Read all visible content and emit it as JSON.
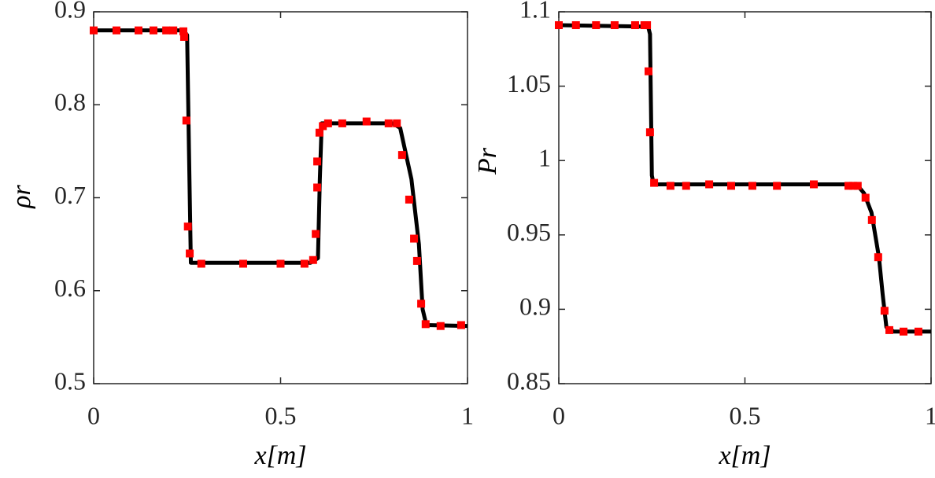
{
  "chart_data": [
    {
      "type": "line",
      "xlabel": "x[m]",
      "ylabel": "ρr",
      "xlim": [
        0,
        1
      ],
      "xticks": [
        0,
        0.5,
        1
      ],
      "ylim": [
        0.5,
        0.9
      ],
      "yticks": [
        0.5,
        0.6,
        0.7,
        0.8,
        0.9
      ],
      "grid": false,
      "series": [
        {
          "style": "line",
          "color": "#000000",
          "x": [
            0,
            0.24,
            0.25,
            0.255,
            0.26,
            0.58,
            0.6,
            0.605,
            0.61,
            0.8,
            0.82,
            0.85,
            0.87,
            0.88,
            0.89,
            1.0
          ],
          "values": [
            0.88,
            0.88,
            0.875,
            0.75,
            0.63,
            0.63,
            0.635,
            0.72,
            0.78,
            0.78,
            0.775,
            0.72,
            0.65,
            0.58,
            0.563,
            0.562
          ]
        },
        {
          "style": "markers",
          "color": "#ff0000",
          "x": [
            0,
            0.061,
            0.12,
            0.16,
            0.194,
            0.213,
            0.24,
            0.242,
            0.248,
            0.252,
            0.257,
            0.288,
            0.4,
            0.5,
            0.564,
            0.587,
            0.594,
            0.598,
            0.598,
            0.604,
            0.613,
            0.627,
            0.665,
            0.73,
            0.789,
            0.811,
            0.825,
            0.844,
            0.857,
            0.865,
            0.876,
            0.888,
            0.928,
            0.983
          ],
          "values": [
            0.88,
            0.88,
            0.88,
            0.88,
            0.88,
            0.88,
            0.879,
            0.873,
            0.783,
            0.669,
            0.64,
            0.629,
            0.629,
            0.629,
            0.629,
            0.633,
            0.661,
            0.711,
            0.739,
            0.77,
            0.777,
            0.78,
            0.78,
            0.782,
            0.78,
            0.78,
            0.746,
            0.698,
            0.656,
            0.632,
            0.586,
            0.564,
            0.562,
            0.563
          ]
        }
      ]
    },
    {
      "type": "line",
      "xlabel": "x[m]",
      "ylabel": "Pr",
      "xlim": [
        0,
        1
      ],
      "xticks": [
        0,
        0.5,
        1
      ],
      "ylim": [
        0.85,
        1.1
      ],
      "yticks": [
        0.85,
        0.9,
        0.95,
        1,
        1.05,
        1.1
      ],
      "grid": false,
      "series": [
        {
          "style": "line",
          "color": "#000000",
          "x": [
            0,
            0.24,
            0.245,
            0.25,
            0.255,
            0.8,
            0.82,
            0.84,
            0.86,
            0.87,
            0.88,
            0.9,
            1.0
          ],
          "values": [
            1.091,
            1.09,
            1.085,
            0.99,
            0.984,
            0.984,
            0.978,
            0.965,
            0.935,
            0.91,
            0.888,
            0.885,
            0.885
          ]
        },
        {
          "style": "markers",
          "color": "#ff0000",
          "x": [
            0,
            0.046,
            0.1,
            0.15,
            0.205,
            0.23,
            0.237,
            0.241,
            0.245,
            0.256,
            0.3,
            0.342,
            0.404,
            0.463,
            0.52,
            0.586,
            0.685,
            0.778,
            0.791,
            0.803,
            0.824,
            0.841,
            0.858,
            0.875,
            0.888,
            0.926,
            0.966
          ],
          "values": [
            1.091,
            1.091,
            1.091,
            1.091,
            1.091,
            1.091,
            1.091,
            1.06,
            1.019,
            0.985,
            0.983,
            0.983,
            0.984,
            0.983,
            0.983,
            0.983,
            0.984,
            0.983,
            0.983,
            0.983,
            0.975,
            0.96,
            0.935,
            0.899,
            0.886,
            0.885,
            0.885
          ]
        }
      ]
    }
  ]
}
